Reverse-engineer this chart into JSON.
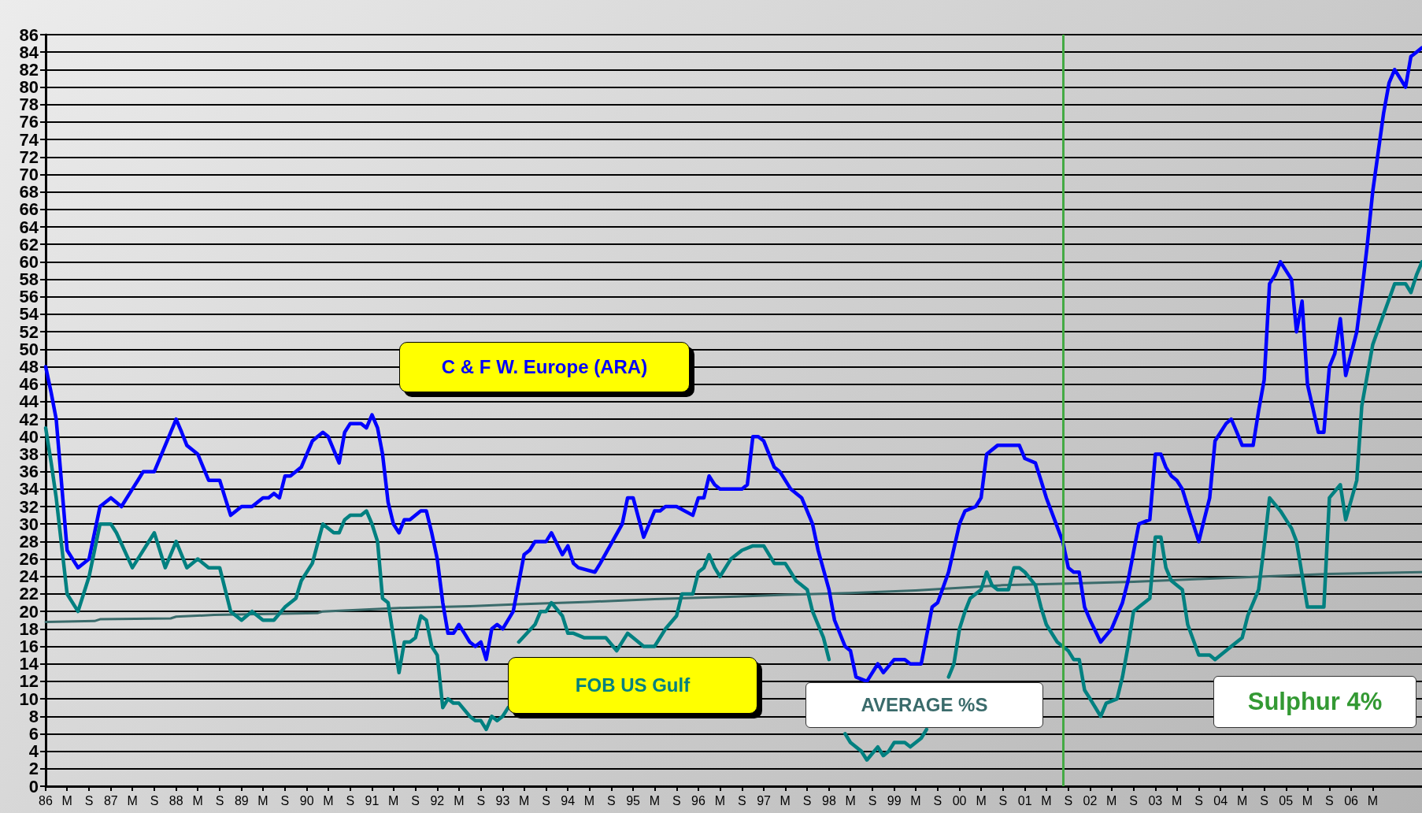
{
  "chart_data": {
    "type": "line",
    "annotations": [
      "Sulphur 4%"
    ],
    "xlim": [
      "1986-01",
      "2007-02"
    ],
    "ylim": [
      0,
      86
    ],
    "yticks": [
      0,
      2,
      4,
      6,
      8,
      10,
      12,
      14,
      16,
      18,
      20,
      22,
      24,
      26,
      28,
      30,
      32,
      34,
      36,
      38,
      40,
      42,
      44,
      46,
      48,
      50,
      52,
      54,
      56,
      58,
      60,
      62,
      64,
      66,
      68,
      70,
      72,
      74,
      76,
      78,
      80,
      82,
      84,
      86
    ],
    "xticks": [
      {
        "value": "1986-01",
        "label": "86"
      },
      {
        "value": "1986-05",
        "label": "M"
      },
      {
        "value": "1986-09",
        "label": "S"
      },
      {
        "value": "1987-01",
        "label": "87"
      },
      {
        "value": "1987-05",
        "label": "M"
      },
      {
        "value": "1987-09",
        "label": "S"
      },
      {
        "value": "1988-01",
        "label": "88"
      },
      {
        "value": "1988-05",
        "label": "M"
      },
      {
        "value": "1988-09",
        "label": "S"
      },
      {
        "value": "1989-01",
        "label": "89"
      },
      {
        "value": "1989-05",
        "label": "M"
      },
      {
        "value": "1989-09",
        "label": "S"
      },
      {
        "value": "1990-01",
        "label": "90"
      },
      {
        "value": "1990-05",
        "label": "M"
      },
      {
        "value": "1990-09",
        "label": "S"
      },
      {
        "value": "1991-01",
        "label": "91"
      },
      {
        "value": "1991-05",
        "label": "M"
      },
      {
        "value": "1991-09",
        "label": "S"
      },
      {
        "value": "1992-01",
        "label": "92"
      },
      {
        "value": "1992-05",
        "label": "M"
      },
      {
        "value": "1992-09",
        "label": "S"
      },
      {
        "value": "1993-01",
        "label": "93"
      },
      {
        "value": "1993-05",
        "label": "M"
      },
      {
        "value": "1993-09",
        "label": "S"
      },
      {
        "value": "1994-01",
        "label": "94"
      },
      {
        "value": "1994-05",
        "label": "M"
      },
      {
        "value": "1994-09",
        "label": "S"
      },
      {
        "value": "1995-01",
        "label": "95"
      },
      {
        "value": "1995-05",
        "label": "M"
      },
      {
        "value": "1995-09",
        "label": "S"
      },
      {
        "value": "1996-01",
        "label": "96"
      },
      {
        "value": "1996-05",
        "label": "M"
      },
      {
        "value": "1996-09",
        "label": "S"
      },
      {
        "value": "1997-01",
        "label": "97"
      },
      {
        "value": "1997-05",
        "label": "M"
      },
      {
        "value": "1997-09",
        "label": "S"
      },
      {
        "value": "1998-01",
        "label": "98"
      },
      {
        "value": "1998-05",
        "label": "M"
      },
      {
        "value": "1998-09",
        "label": "S"
      },
      {
        "value": "1999-01",
        "label": "99"
      },
      {
        "value": "1999-05",
        "label": "M"
      },
      {
        "value": "1999-09",
        "label": "S"
      },
      {
        "value": "2000-01",
        "label": "00"
      },
      {
        "value": "2000-05",
        "label": "M"
      },
      {
        "value": "2000-09",
        "label": "S"
      },
      {
        "value": "2001-01",
        "label": "01"
      },
      {
        "value": "2001-05",
        "label": "M"
      },
      {
        "value": "2001-09",
        "label": "S"
      },
      {
        "value": "2002-01",
        "label": "02"
      },
      {
        "value": "2002-05",
        "label": "M"
      },
      {
        "value": "2002-09",
        "label": "S"
      },
      {
        "value": "2003-01",
        "label": "03"
      },
      {
        "value": "2003-05",
        "label": "M"
      },
      {
        "value": "2003-09",
        "label": "S"
      },
      {
        "value": "2004-01",
        "label": "04"
      },
      {
        "value": "2004-05",
        "label": "M"
      },
      {
        "value": "2004-09",
        "label": "S"
      },
      {
        "value": "2005-01",
        "label": "05"
      },
      {
        "value": "2005-05",
        "label": "M"
      },
      {
        "value": "2005-09",
        "label": "S"
      },
      {
        "value": "2006-01",
        "label": "06"
      },
      {
        "value": "2006-05",
        "label": "M"
      }
    ],
    "grid": "y",
    "legend": false,
    "marker": "none",
    "line_style": "solid",
    "ref_lines": [
      {
        "axis": "x",
        "value": "2001-08",
        "color": "#44aa44"
      }
    ],
    "series": [
      {
        "name": "C & F  W. Europe (ARA)",
        "color": "#0000ff",
        "x": [
          "1986-01",
          "1986-02",
          "1986-03",
          "1986-05",
          "1986-07",
          "1986-09",
          "1986-11",
          "1987-01",
          "1987-03",
          "1987-05",
          "1987-06",
          "1987-07",
          "1987-09",
          "1988-01",
          "1988-02",
          "1988-03",
          "1988-04",
          "1988-05",
          "1988-07",
          "1988-09",
          "1988-10",
          "1988-11",
          "1989-01",
          "1989-03",
          "1989-05",
          "1989-06",
          "1989-07",
          "1989-08",
          "1989-09",
          "1989-10",
          "1989-12",
          "1990-02",
          "1990-04",
          "1990-05",
          "1990-07",
          "1990-08",
          "1990-09",
          "1990-11",
          "1990-12",
          "1991-01",
          "1991-02",
          "1991-03",
          "1991-04",
          "1991-05",
          "1991-06",
          "1991-07",
          "1991-08",
          "1991-10",
          "1991-11",
          "1991-12",
          "1992-01",
          "1992-02",
          "1992-03",
          "1992-04",
          "1992-05",
          "1992-06",
          "1992-07",
          "1992-08",
          "1992-09",
          "1992-10",
          "1992-11",
          "1992-12",
          "1993-01",
          "1993-03",
          "1993-05",
          "1993-06",
          "1993-07",
          "1993-09",
          "1993-10",
          "1993-12",
          "1994-01",
          "1994-02",
          "1994-03",
          "1994-06",
          "1994-07",
          "1994-11",
          "1994-12",
          "1995-01",
          "1995-03",
          "1995-05",
          "1995-06",
          "1995-07",
          "1995-09",
          "1995-12",
          "1996-01",
          "1996-02",
          "1996-03",
          "1996-04",
          "1996-05",
          "1996-09",
          "1996-10",
          "1996-11",
          "1996-12",
          "1997-01",
          "1997-03",
          "1997-04",
          "1997-06",
          "1997-08",
          "1997-10",
          "1997-11",
          "1998-01",
          "1998-02",
          "1998-04",
          "1998-05",
          "1998-06",
          "1998-08",
          "1998-10",
          "1998-11",
          "1999-01",
          "1999-03",
          "1999-04",
          "1999-06",
          "1999-08",
          "1999-09",
          "1999-11",
          "2000-01",
          "2000-02",
          "2000-04",
          "2000-05",
          "2000-06",
          "2000-08",
          "2000-12",
          "2001-01",
          "2001-03",
          "2001-04",
          "2001-05",
          "2001-08",
          "2001-09",
          "2001-10",
          "2001-11",
          "2001-12",
          "2002-01",
          "2002-03",
          "2002-05",
          "2002-07",
          "2002-08",
          "2002-10",
          "2002-12",
          "2003-01",
          "2003-02",
          "2003-03",
          "2003-04",
          "2003-05",
          "2003-06",
          "2003-07",
          "2003-09",
          "2003-10",
          "2003-11",
          "2003-12",
          "2004-02",
          "2004-03",
          "2004-04",
          "2004-05",
          "2004-07",
          "2004-08",
          "2004-09",
          "2004-10",
          "2004-11",
          "2004-12",
          "2005-02",
          "2005-03",
          "2005-04",
          "2005-05",
          "2005-07",
          "2005-08",
          "2005-09",
          "2005-10",
          "2005-11",
          "2005-12",
          "2006-02",
          "2006-03",
          "2006-04",
          "2006-05",
          "2006-07",
          "2006-08",
          "2006-09",
          "2006-11",
          "2006-12",
          "2007-01",
          "2007-02"
        ],
        "values": [
          48,
          45,
          42,
          27,
          25,
          26,
          32,
          33,
          32,
          34,
          35,
          36,
          36,
          42,
          40.5,
          39,
          38.5,
          38,
          35,
          35,
          33,
          31,
          32,
          32,
          33,
          33,
          33.5,
          33,
          35.5,
          35.5,
          36.5,
          39.5,
          40.5,
          40,
          37,
          40.5,
          41.5,
          41.5,
          41,
          42.5,
          41,
          38,
          32.5,
          30,
          29,
          30.5,
          30.5,
          31.5,
          31.5,
          29,
          26,
          21,
          17.5,
          17.5,
          18.5,
          17.5,
          16.5,
          16,
          16.5,
          14.5,
          18,
          18.5,
          18,
          20,
          26.5,
          27,
          28,
          28,
          29,
          26.5,
          27.5,
          25.5,
          25,
          24.5,
          25.5,
          30,
          33,
          33,
          28.5,
          31.5,
          31.5,
          32,
          32,
          31,
          33,
          33,
          35.5,
          34.5,
          34,
          34,
          34.5,
          40,
          40,
          39.5,
          36.5,
          36,
          34,
          33,
          30,
          27,
          22.5,
          19,
          16,
          15.5,
          12.5,
          12,
          14,
          13,
          14.5,
          14.5,
          14,
          14,
          20.5,
          21,
          24.5,
          30,
          31.5,
          32,
          33,
          38,
          39,
          39,
          37.5,
          37,
          35,
          33,
          28,
          25,
          24.5,
          24.5,
          20.5,
          19,
          16.5,
          18,
          21,
          23.5,
          30,
          30.5,
          38,
          38,
          36.5,
          35.5,
          35,
          34,
          32,
          28,
          30.5,
          33,
          39.5,
          41.5,
          42,
          40.5,
          39,
          39,
          43,
          46.5,
          57.5,
          58.5,
          60,
          58,
          52,
          55.5,
          46,
          40.5,
          40.5,
          48,
          49.5,
          53.5,
          47,
          52,
          56.5,
          62,
          68,
          77,
          80.5,
          82,
          80,
          83.5,
          84,
          84.5
        ]
      },
      {
        "name": "FOB US Gulf",
        "color": "#008080",
        "x": [
          "1986-01",
          "1986-02",
          "1986-03",
          "1986-05",
          "1986-07",
          "1986-09",
          "1986-11",
          "1987-01",
          "1987-02",
          "1987-05",
          "1987-09",
          "1987-11",
          "1988-01",
          "1988-03",
          "1988-05",
          "1988-07",
          "1988-09",
          "1988-11",
          "1989-01",
          "1989-03",
          "1989-05",
          "1989-07",
          "1989-09",
          "1989-11",
          "1989-12",
          "1990-02",
          "1990-04",
          "1990-06",
          "1990-07",
          "1990-08",
          "1990-09",
          "1990-11",
          "1990-12",
          "1991-01",
          "1991-02",
          "1991-03",
          "1991-04",
          "1991-06",
          "1991-07",
          "1991-08",
          "1991-09",
          "1991-10",
          "1991-11",
          "1991-12",
          "1992-01",
          "1992-02",
          "1992-03",
          "1992-04",
          "1992-05",
          "1992-07",
          "1992-08",
          "1992-09",
          "1992-10",
          "1992-11",
          "1992-12",
          "1993-01",
          "1993-02",
          "1993-03",
          "1993-04",
          "1993-07",
          "1993-08",
          "1993-09",
          "1993-10",
          "1993-12",
          "1994-01",
          "1994-02",
          "1994-04",
          "1994-08",
          "1994-10",
          "1994-12",
          "1995-01",
          "1995-03",
          "1995-05",
          "1995-07",
          "1995-09",
          "1995-10",
          "1995-12",
          "1996-01",
          "1996-02",
          "1996-03",
          "1996-04",
          "1996-05",
          "1996-07",
          "1996-09",
          "1996-11",
          "1997-01",
          "1997-03",
          "1997-05",
          "1997-06",
          "1997-07",
          "1997-09",
          "1997-10",
          "1997-12",
          "1998-01",
          "1998-03",
          "1998-04",
          "1998-05",
          "1998-07",
          "1998-08",
          "1998-10",
          "1998-11",
          "1998-12",
          "1999-01",
          "1999-03",
          "1999-04",
          "1999-06",
          "1999-07",
          "1999-09",
          "1999-11",
          "1999-12",
          "2000-01",
          "2000-02",
          "2000-03",
          "2000-05",
          "2000-06",
          "2000-07",
          "2000-08",
          "2000-10",
          "2000-11",
          "2000-12",
          "2001-01",
          "2001-03",
          "2001-04",
          "2001-05",
          "2001-07",
          "2001-09",
          "2001-10",
          "2001-11",
          "2001-12",
          "2002-01",
          "2002-03",
          "2002-04",
          "2002-06",
          "2002-07",
          "2002-08",
          "2002-09",
          "2002-10",
          "2002-12",
          "2003-01",
          "2003-02",
          "2003-03",
          "2003-04",
          "2003-06",
          "2003-07",
          "2003-09",
          "2003-11",
          "2003-12",
          "2004-03",
          "2004-05",
          "2004-06",
          "2004-08",
          "2004-09",
          "2004-10",
          "2004-12",
          "2005-01",
          "2005-02",
          "2005-03",
          "2005-05",
          "2005-08",
          "2005-09",
          "2005-11",
          "2005-12",
          "2006-02",
          "2006-03",
          "2006-05",
          "2006-07",
          "2006-09",
          "2006-11",
          "2006-12",
          "2007-01",
          "2007-02"
        ],
        "values": [
          41,
          37,
          33,
          22,
          20,
          24,
          30,
          30,
          29,
          25,
          29,
          25,
          28,
          25,
          26,
          25,
          25,
          20,
          19,
          20,
          19,
          19,
          20.5,
          21.5,
          23.5,
          25.5,
          30,
          29,
          29,
          30.5,
          31,
          31,
          31.5,
          30,
          28,
          21.5,
          21,
          13,
          16.5,
          16.5,
          17,
          19.5,
          19,
          16,
          15,
          9,
          10,
          9.5,
          9.5,
          8,
          7.5,
          7.5,
          6.5,
          8,
          7.5,
          8,
          9,
          null,
          16.5,
          18.5,
          20,
          20,
          21,
          19.5,
          17.5,
          17.5,
          17,
          17,
          15.5,
          17.5,
          17,
          16,
          16,
          18,
          19.5,
          22,
          22,
          24.5,
          25,
          26.5,
          25,
          24,
          26,
          27,
          27.5,
          27.5,
          25.5,
          25.5,
          24.5,
          23.5,
          22.5,
          20,
          17,
          14.5,
          null,
          6,
          5,
          4,
          3,
          4.5,
          3.5,
          4,
          5,
          5,
          4.5,
          5.5,
          6.5,
          null,
          12.5,
          14,
          18,
          20,
          21.5,
          22.5,
          24.5,
          23,
          22.5,
          22.5,
          25,
          25,
          24.5,
          23,
          20.5,
          18.5,
          16.5,
          15.5,
          14.5,
          14.5,
          11,
          10,
          8,
          9.5,
          10,
          12.5,
          16,
          20,
          20.5,
          21.5,
          28.5,
          28.5,
          25,
          23.5,
          22.5,
          18.5,
          15,
          15,
          14.5,
          16,
          17,
          19.5,
          22.5,
          27.5,
          33,
          31.5,
          30.5,
          29.5,
          28,
          20.5,
          20.5,
          33,
          34.5,
          30.5,
          35,
          43.5,
          50.5,
          54,
          57.5,
          57.5,
          56.5,
          58.5,
          60
        ]
      },
      {
        "name": "AVERAGE %S",
        "color": "#3a6b6b",
        "x": [
          "1986-01",
          "1986-10",
          "1986-11",
          "1987-12",
          "1988-01",
          "1988-08",
          "1990-03",
          "1990-04",
          "1990-11",
          "1991-06",
          "1992-07",
          "1993-03",
          "1994-05",
          "1995-05",
          "1996-08",
          "1997-05",
          "1998-05",
          "1999-05",
          "2000-09",
          "2001-09",
          "2002-09",
          "2003-09",
          "2004-09",
          "2005-09",
          "2007-02"
        ],
        "values": [
          18.8,
          18.9,
          19.1,
          19.2,
          19.4,
          19.6,
          19.8,
          20,
          20.2,
          20.4,
          20.6,
          20.8,
          21.1,
          21.4,
          21.7,
          21.9,
          22.1,
          22.4,
          23,
          23.2,
          23.4,
          23.7,
          24,
          24.3,
          24.5
        ]
      }
    ]
  }
}
